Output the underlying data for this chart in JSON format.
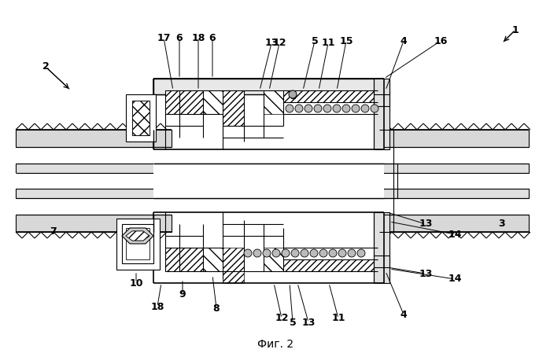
{
  "bg": "#ffffff",
  "lc": "#000000",
  "caption": "Фиг. 2",
  "fig_w": 6.99,
  "fig_h": 4.63,
  "dpi": 100
}
